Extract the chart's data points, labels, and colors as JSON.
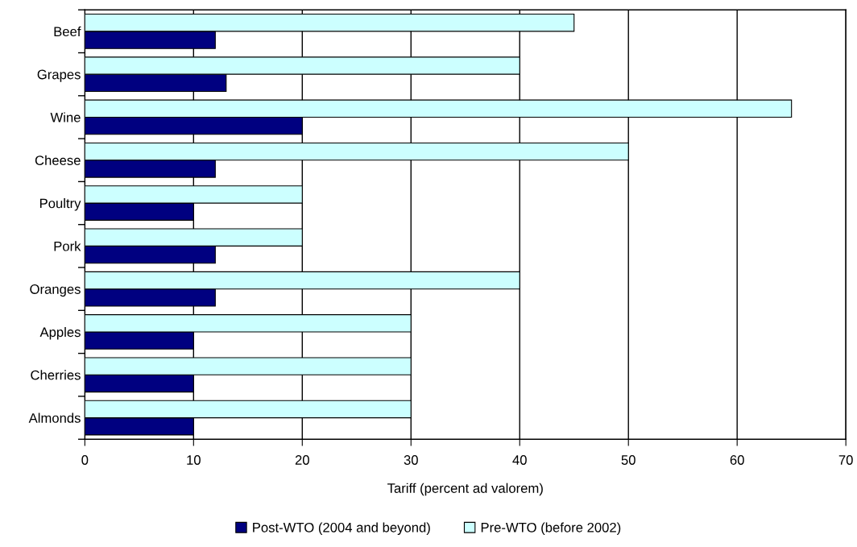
{
  "chart_data": {
    "type": "bar",
    "orientation": "horizontal",
    "categories": [
      "Beef",
      "Grapes",
      "Wine",
      "Cheese",
      "Poultry",
      "Pork",
      "Oranges",
      "Apples",
      "Cherries",
      "Almonds"
    ],
    "series": [
      {
        "name": "Post-WTO (2004 and beyond)",
        "color": "#000080",
        "values": [
          12,
          13,
          20,
          12,
          10,
          12,
          12,
          10,
          10,
          10
        ]
      },
      {
        "name": "Pre-WTO (before 2002)",
        "color": "#ccffff",
        "values": [
          45,
          40,
          65,
          50,
          20,
          20,
          40,
          30,
          30,
          30
        ]
      }
    ],
    "xlabel": "Tariff (percent ad valorem)",
    "xlim": [
      0,
      70
    ],
    "xticks": [
      0,
      10,
      20,
      30,
      40,
      50,
      60,
      70
    ],
    "grid": "x",
    "legend": "bottom"
  }
}
